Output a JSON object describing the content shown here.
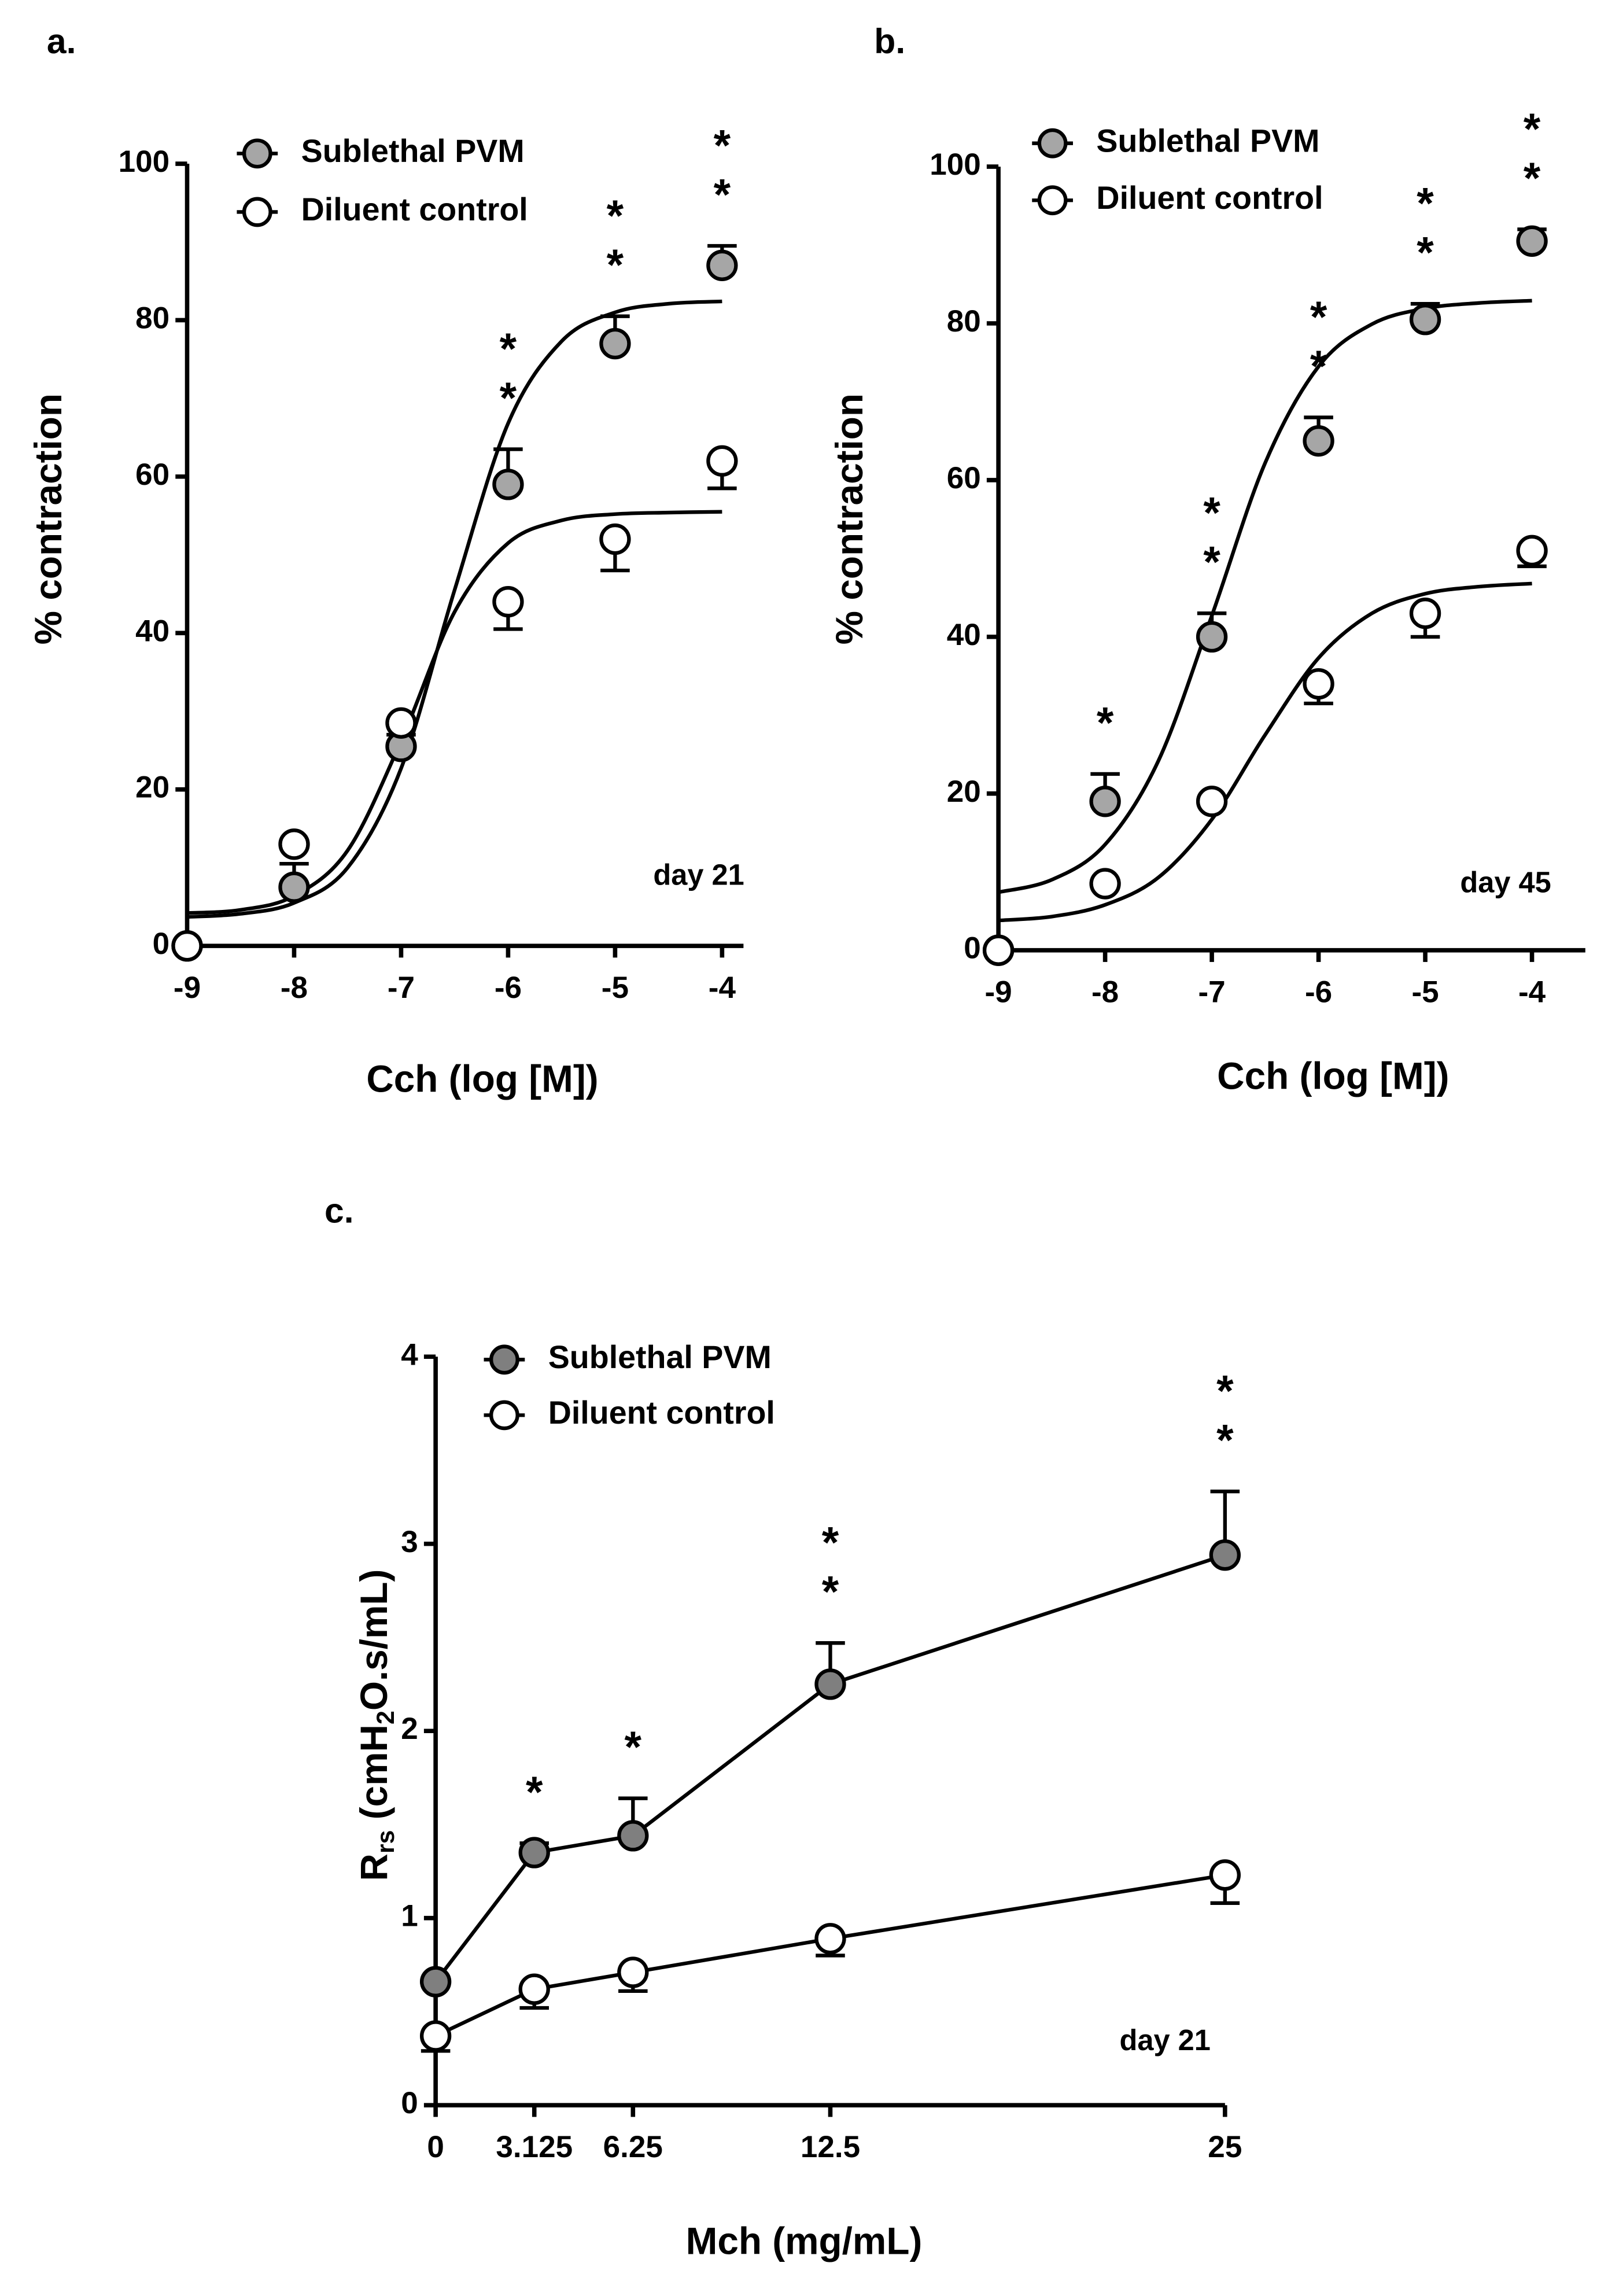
{
  "chart_data": [
    {
      "type": "scatter",
      "title": "a.",
      "xlabel": "Cch (log [M])",
      "ylabel": "% contraction",
      "annotation": "day 21",
      "legend": "upper left",
      "xlim": [
        -9,
        -3.8
      ],
      "xticks": [
        -9,
        -8,
        -7,
        -6,
        -5,
        -4
      ],
      "ylim": [
        0,
        100
      ],
      "yticks": [
        0,
        20,
        40,
        60,
        80,
        100
      ],
      "x": [
        -9,
        -8,
        -7,
        -6,
        -5,
        -4
      ],
      "series": [
        {
          "name": "Sublethal PVM",
          "color": "#a6a6a6",
          "values": [
            0,
            7.5,
            25.5,
            59,
            77,
            87
          ],
          "errors": [
            null,
            3,
            1.5,
            4.5,
            3.5,
            2.5
          ],
          "error_side": "up",
          "labels": [
            null,
            null,
            null,
            "**",
            "**",
            "**"
          ],
          "fit": {
            "x": [
              -9,
              -8.5,
              -8,
              -7.5,
              -7,
              -6.5,
              -6,
              -5.5,
              -5,
              -4.5,
              -4
            ],
            "values": [
              3.7,
              4.1,
              5.5,
              10,
              22.7,
              45.5,
              66.8,
              77.3,
              81,
              82.1,
              82.4
            ]
          }
        },
        {
          "name": "Diluent control",
          "color": "#ffffff",
          "values": [
            0,
            13,
            28.5,
            44,
            52,
            62
          ],
          "errors": [
            null,
            null,
            null,
            3.5,
            4,
            3.5
          ],
          "error_side": "down",
          "fit": {
            "x": [
              -9,
              -8.5,
              -8,
              -7.5,
              -7,
              -6.5,
              -6,
              -5.5,
              -5,
              -4.5,
              -4
            ],
            "values": [
              4.2,
              4.6,
              6.4,
              12.2,
              26.2,
              42.7,
              51.5,
              54.4,
              55.2,
              55.4,
              55.5
            ]
          }
        }
      ]
    },
    {
      "type": "scatter",
      "title": "b.",
      "xlabel": "Cch (log [M])",
      "ylabel": "% contraction",
      "annotation": "day 45",
      "legend": "upper left",
      "xlim": [
        -9,
        -3.5
      ],
      "xticks": [
        -9,
        -8,
        -7,
        -6,
        -5,
        -4
      ],
      "ylim": [
        0,
        100
      ],
      "yticks": [
        0,
        20,
        40,
        60,
        80,
        100
      ],
      "x": [
        -9,
        -8,
        -7,
        -6,
        -5,
        -4
      ],
      "series": [
        {
          "name": "Sublethal PVM",
          "color": "#a6a6a6",
          "values": [
            0,
            19,
            40,
            65,
            80.5,
            90.5
          ],
          "errors": [
            null,
            3.5,
            3,
            3,
            2,
            1.5
          ],
          "error_side": "up",
          "labels": [
            null,
            "*",
            "**",
            "**",
            "**",
            "**"
          ],
          "fit": {
            "x": [
              -9,
              -8.5,
              -8,
              -7.5,
              -7,
              -6.5,
              -6,
              -5.5,
              -5,
              -4.5,
              -4
            ],
            "values": [
              7.4,
              9,
              13.5,
              24.2,
              42.7,
              62.2,
              74.5,
              79.9,
              81.9,
              82.6,
              82.9
            ]
          }
        },
        {
          "name": "Diluent control",
          "color": "#ffffff",
          "values": [
            0,
            8.5,
            19,
            34,
            43,
            51
          ],
          "errors": [
            null,
            null,
            null,
            2.5,
            3,
            2
          ],
          "error_side": "down",
          "fit": {
            "x": [
              -9,
              -8.5,
              -8,
              -7.5,
              -7,
              -6.5,
              -6,
              -5.5,
              -5,
              -4.5,
              -4
            ],
            "values": [
              3.8,
              4.3,
              5.8,
              9.3,
              16.7,
              27.5,
              37.3,
              43,
              45.5,
              46.4,
              46.8
            ]
          }
        }
      ]
    },
    {
      "type": "line",
      "title": "c.",
      "xlabel": "Mch (mg/mL)",
      "ylabel": [
        "R",
        "rs",
        " (cmH",
        "2",
        "O.s/mL)"
      ],
      "annotation": "day 21",
      "legend": "upper left",
      "xlim": [
        0,
        25
      ],
      "xticks": [
        0,
        3.125,
        6.25,
        12.5,
        25
      ],
      "ylim": [
        0,
        4
      ],
      "yticks": [
        0,
        1,
        2,
        3,
        4
      ],
      "x": [
        0,
        3.125,
        6.25,
        12.5,
        25
      ],
      "series": [
        {
          "name": "Sublethal PVM",
          "color": "#7f7f7f",
          "values": [
            0.66,
            1.35,
            1.44,
            2.25,
            2.94
          ],
          "errors": [
            null,
            0.05,
            0.2,
            0.22,
            0.34
          ],
          "error_side": "up",
          "labels": [
            null,
            "*",
            "*",
            "**",
            "**"
          ]
        },
        {
          "name": "Diluent control",
          "color": "#ffffff",
          "values": [
            0.37,
            0.62,
            0.71,
            0.89,
            1.23
          ],
          "errors": [
            0.08,
            0.1,
            0.1,
            0.09,
            0.15
          ],
          "error_side": "down"
        }
      ]
    }
  ]
}
